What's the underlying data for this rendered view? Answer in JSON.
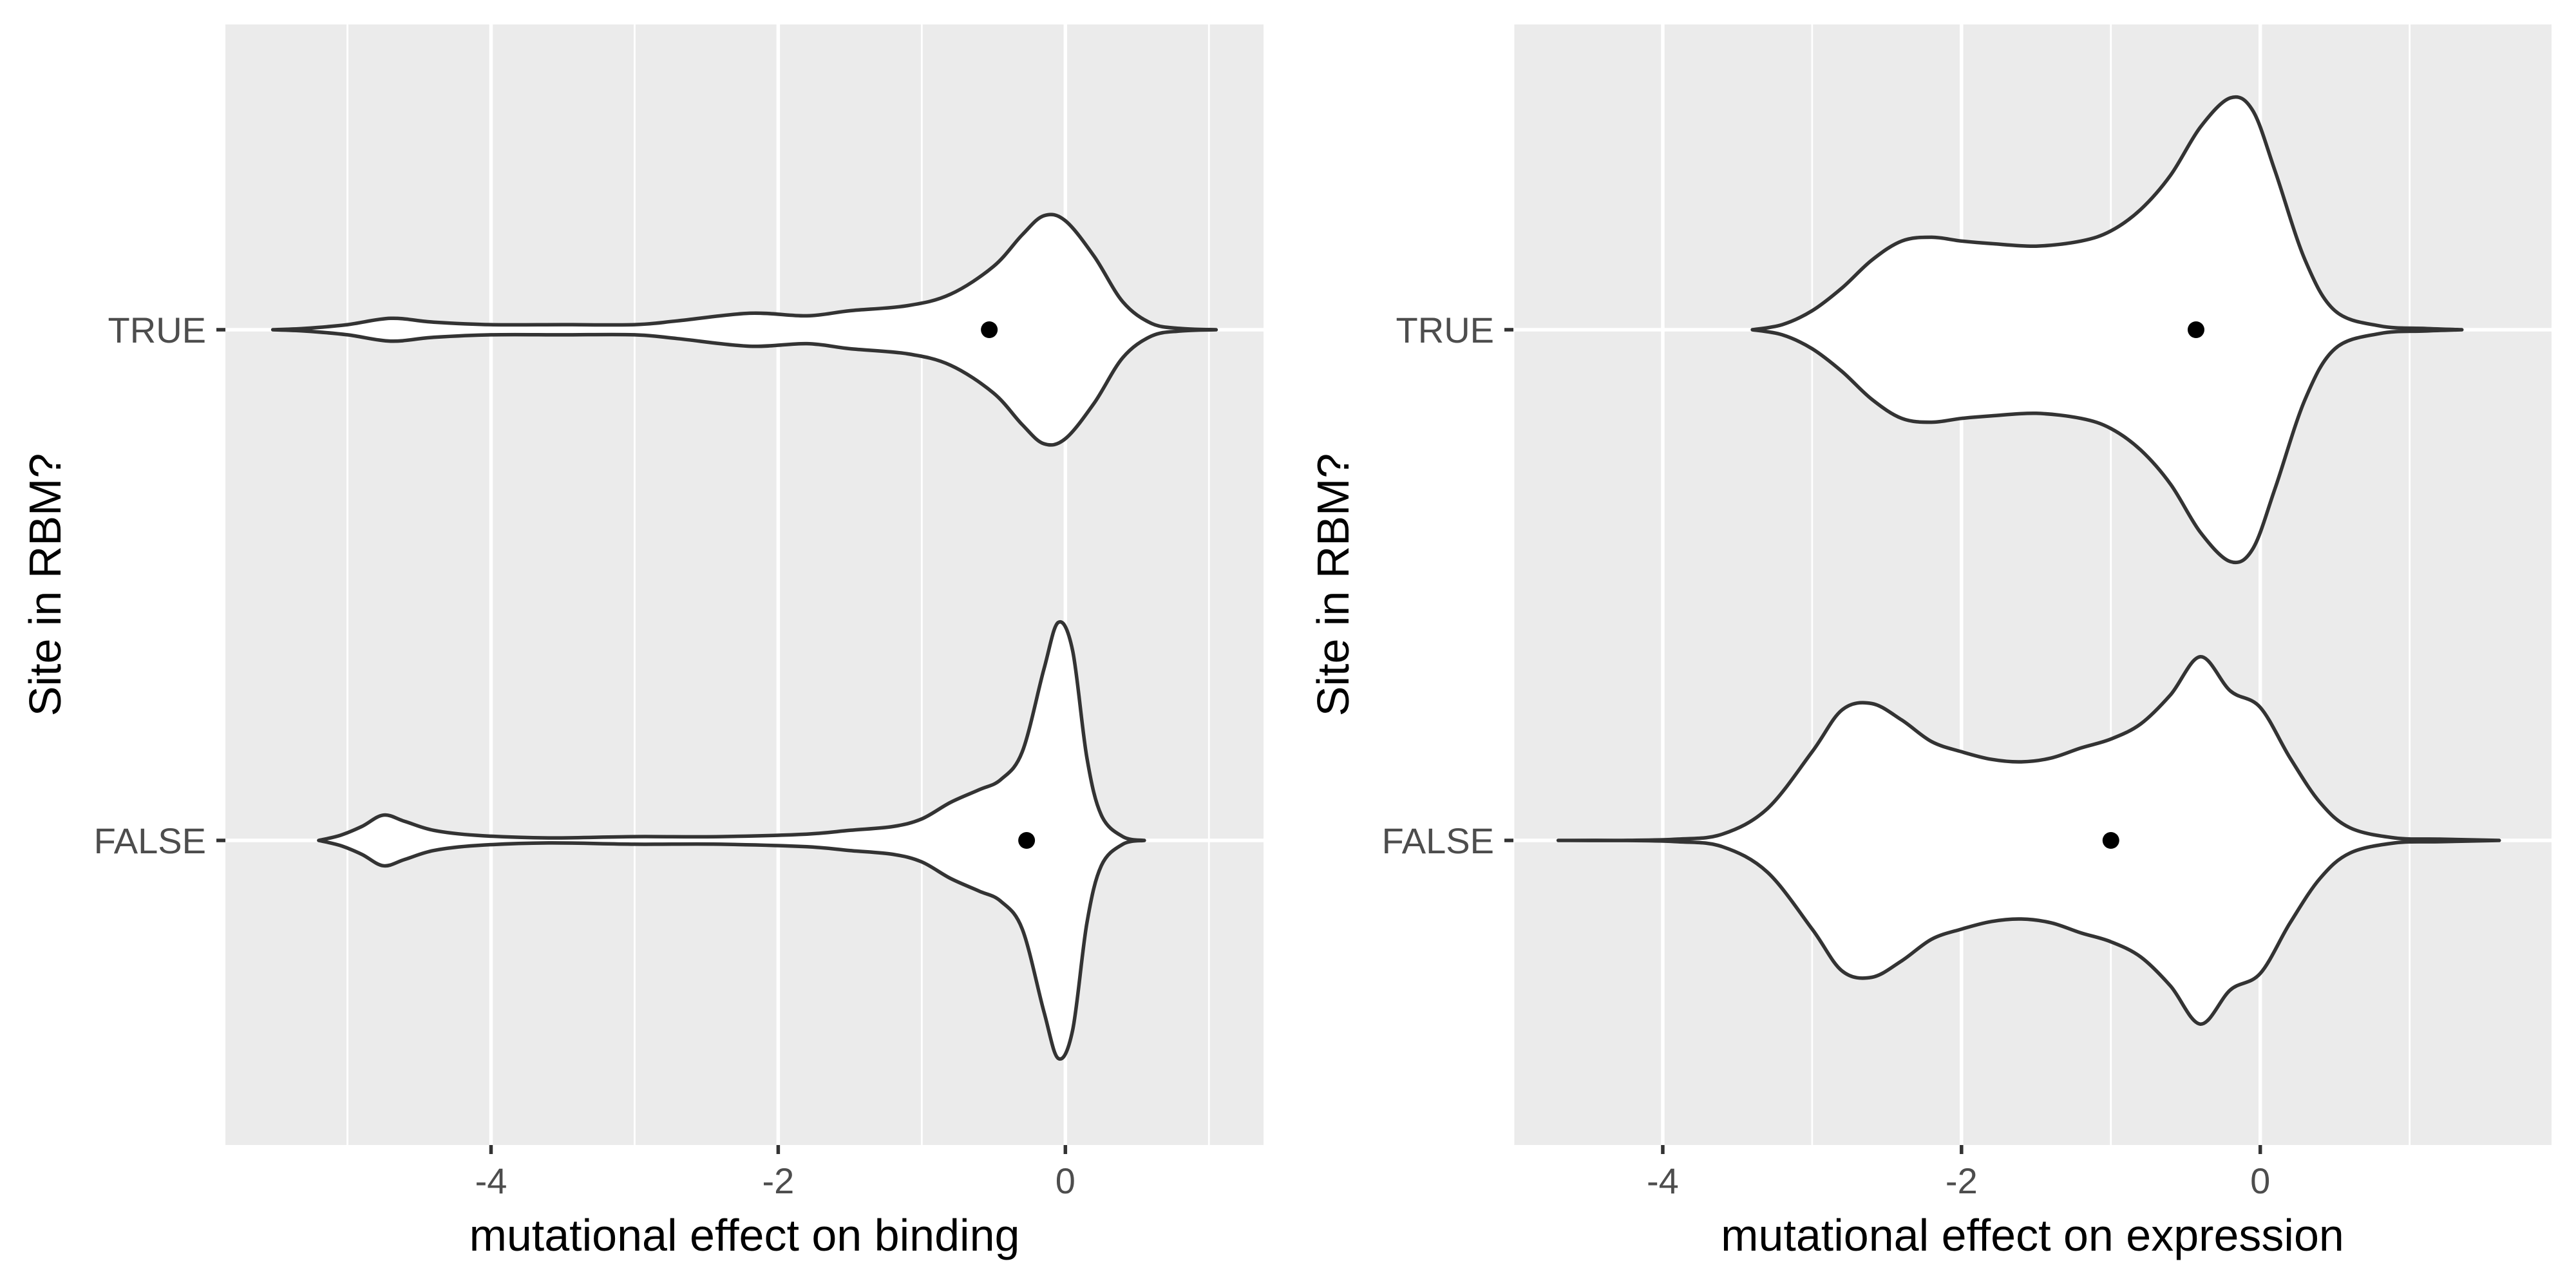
{
  "chart_data": [
    {
      "type": "violin",
      "orientation": "horizontal",
      "xlabel": "mutational effect on binding",
      "ylabel": "Site in RBM?",
      "xlim": [
        -5.85,
        1.38
      ],
      "x_ticks": [
        -4,
        -2,
        0
      ],
      "x_tick_labels": [
        "-4",
        "-2",
        "0"
      ],
      "categories": [
        "TRUE",
        "FALSE"
      ],
      "grid": true,
      "violins": [
        {
          "category": "TRUE",
          "mean": -0.53,
          "density": [
            [
              -5.52,
              0.0
            ],
            [
              -5.3,
              0.01
            ],
            [
              -5.0,
              0.04
            ],
            [
              -4.7,
              0.09
            ],
            [
              -4.4,
              0.06
            ],
            [
              -4.0,
              0.04
            ],
            [
              -3.5,
              0.04
            ],
            [
              -3.0,
              0.04
            ],
            [
              -2.7,
              0.07
            ],
            [
              -2.2,
              0.13
            ],
            [
              -1.8,
              0.11
            ],
            [
              -1.5,
              0.15
            ],
            [
              -1.1,
              0.19
            ],
            [
              -0.8,
              0.28
            ],
            [
              -0.5,
              0.5
            ],
            [
              -0.3,
              0.75
            ],
            [
              -0.15,
              0.9
            ],
            [
              0.0,
              0.86
            ],
            [
              0.2,
              0.58
            ],
            [
              0.4,
              0.22
            ],
            [
              0.6,
              0.05
            ],
            [
              0.8,
              0.01
            ],
            [
              1.05,
              0.0
            ]
          ]
        },
        {
          "category": "FALSE",
          "mean": -0.27,
          "density": [
            [
              -5.2,
              0.0
            ],
            [
              -5.05,
              0.04
            ],
            [
              -4.9,
              0.11
            ],
            [
              -4.75,
              0.2
            ],
            [
              -4.6,
              0.15
            ],
            [
              -4.4,
              0.08
            ],
            [
              -4.1,
              0.04
            ],
            [
              -3.6,
              0.02
            ],
            [
              -3.0,
              0.03
            ],
            [
              -2.4,
              0.03
            ],
            [
              -1.8,
              0.05
            ],
            [
              -1.5,
              0.08
            ],
            [
              -1.2,
              0.11
            ],
            [
              -1.0,
              0.17
            ],
            [
              -0.8,
              0.3
            ],
            [
              -0.6,
              0.4
            ],
            [
              -0.45,
              0.48
            ],
            [
              -0.3,
              0.7
            ],
            [
              -0.15,
              1.35
            ],
            [
              -0.05,
              1.72
            ],
            [
              0.05,
              1.5
            ],
            [
              0.15,
              0.65
            ],
            [
              0.25,
              0.2
            ],
            [
              0.4,
              0.03
            ],
            [
              0.55,
              0.0
            ]
          ]
        }
      ]
    },
    {
      "type": "violin",
      "orientation": "horizontal",
      "xlabel": "mutational effect on expression",
      "ylabel": "Site in RBM?",
      "xlim": [
        -5.0,
        1.95
      ],
      "x_ticks": [
        -4,
        -2,
        0
      ],
      "x_tick_labels": [
        "-4",
        "-2",
        "0"
      ],
      "categories": [
        "TRUE",
        "FALSE"
      ],
      "grid": true,
      "violins": [
        {
          "category": "TRUE",
          "mean": -0.43,
          "density": [
            [
              -3.4,
              0.0
            ],
            [
              -3.2,
              0.04
            ],
            [
              -3.0,
              0.15
            ],
            [
              -2.8,
              0.33
            ],
            [
              -2.6,
              0.55
            ],
            [
              -2.4,
              0.7
            ],
            [
              -2.2,
              0.73
            ],
            [
              -2.0,
              0.7
            ],
            [
              -1.8,
              0.68
            ],
            [
              -1.5,
              0.66
            ],
            [
              -1.2,
              0.7
            ],
            [
              -1.0,
              0.78
            ],
            [
              -0.8,
              0.95
            ],
            [
              -0.6,
              1.22
            ],
            [
              -0.4,
              1.6
            ],
            [
              -0.2,
              1.83
            ],
            [
              -0.05,
              1.73
            ],
            [
              0.1,
              1.25
            ],
            [
              0.3,
              0.55
            ],
            [
              0.5,
              0.15
            ],
            [
              0.8,
              0.03
            ],
            [
              1.1,
              0.01
            ],
            [
              1.35,
              0.0
            ]
          ]
        },
        {
          "category": "FALSE",
          "mean": -1.0,
          "density": [
            [
              -4.7,
              0.0
            ],
            [
              -4.3,
              0.0
            ],
            [
              -3.9,
              0.01
            ],
            [
              -3.6,
              0.05
            ],
            [
              -3.3,
              0.25
            ],
            [
              -3.0,
              0.7
            ],
            [
              -2.8,
              1.03
            ],
            [
              -2.6,
              1.08
            ],
            [
              -2.4,
              0.95
            ],
            [
              -2.2,
              0.78
            ],
            [
              -2.0,
              0.7
            ],
            [
              -1.8,
              0.64
            ],
            [
              -1.6,
              0.62
            ],
            [
              -1.4,
              0.65
            ],
            [
              -1.2,
              0.73
            ],
            [
              -1.0,
              0.8
            ],
            [
              -0.8,
              0.92
            ],
            [
              -0.6,
              1.15
            ],
            [
              -0.4,
              1.45
            ],
            [
              -0.2,
              1.18
            ],
            [
              0.0,
              1.05
            ],
            [
              0.2,
              0.65
            ],
            [
              0.4,
              0.3
            ],
            [
              0.6,
              0.1
            ],
            [
              0.9,
              0.02
            ],
            [
              1.2,
              0.01
            ],
            [
              1.6,
              0.0
            ]
          ]
        }
      ]
    }
  ]
}
